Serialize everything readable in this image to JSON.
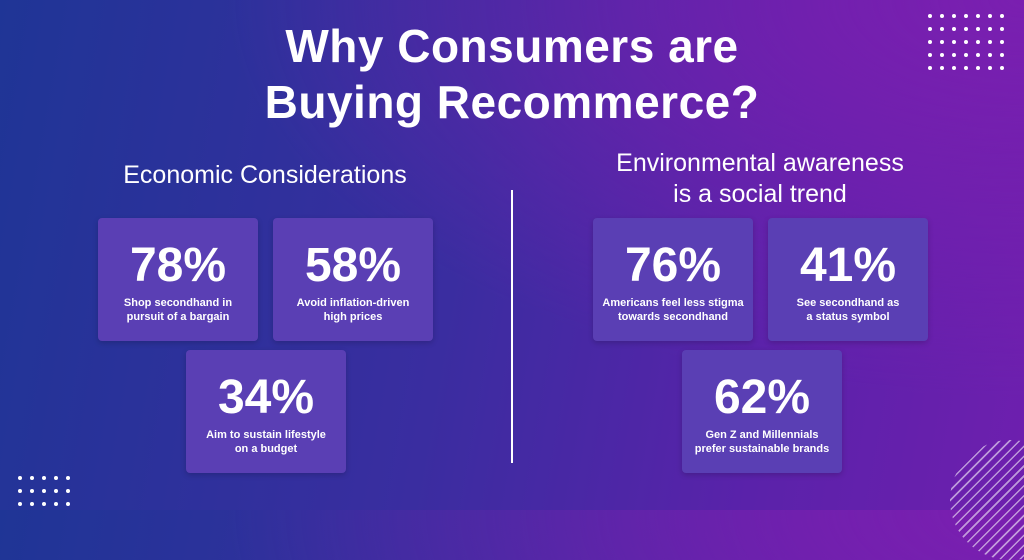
{
  "title": {
    "line1": "Why Consumers are",
    "line2": "Buying Recommerce?"
  },
  "economic": {
    "heading": "Economic Considerations",
    "cards": [
      {
        "value": "78%",
        "line1": "Shop secondhand in",
        "line2": "pursuit of a bargain"
      },
      {
        "value": "58%",
        "line1": "Avoid inflation-driven",
        "line2": "high prices"
      },
      {
        "value": "34%",
        "line1": "Aim to sustain lifestyle",
        "line2": "on a budget"
      }
    ]
  },
  "environmental": {
    "heading_line1": "Environmental awareness",
    "heading_line2": "is a social trend",
    "cards": [
      {
        "value": "76%",
        "line1": "Americans feel less stigma",
        "line2": "towards secondhand"
      },
      {
        "value": "41%",
        "line1": "See secondhand as",
        "line2": "a status symbol"
      },
      {
        "value": "62%",
        "line1": "Gen Z and Millennials",
        "line2": "prefer sustainable brands"
      }
    ]
  },
  "colors": {
    "card_background": "#5a3fb4",
    "background_start": "#1f3596",
    "background_end": "#6e1fae",
    "text": "#ffffff"
  }
}
